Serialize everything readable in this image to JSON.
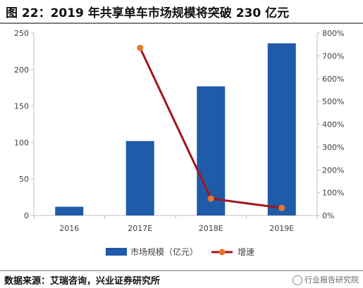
{
  "title": "图 22：2019 年共享单车市场规模将突破 230 亿元",
  "source": "数据来源：艾瑞咨询，兴业证券研究所",
  "watermark": "行业报告研究院",
  "colors": {
    "bar": "#1f5ba8",
    "line": "#a0161d",
    "marker": "#e8762b",
    "axis": "#bfbfbf",
    "text": "#404040"
  },
  "chart_data": {
    "type": "bar",
    "categories": [
      "2016",
      "2017E",
      "2018E",
      "2019E"
    ],
    "series": [
      {
        "name": "市场规模（亿元）",
        "type": "bar",
        "axis": "left",
        "values": [
          12,
          102,
          177,
          236
        ]
      },
      {
        "name": "增速",
        "type": "line",
        "axis": "right",
        "values": [
          null,
          7.35,
          0.74,
          0.33
        ]
      }
    ],
    "y_left": {
      "lim": [
        0,
        250
      ],
      "ticks": [
        "0",
        "50",
        "100",
        "150",
        "200",
        "250"
      ]
    },
    "y_right": {
      "lim": [
        0,
        8
      ],
      "ticks": [
        "0%",
        "100%",
        "200%",
        "300%",
        "400%",
        "500%",
        "600%",
        "700%",
        "800%"
      ]
    },
    "grid": false,
    "legend_position": "bottom"
  }
}
